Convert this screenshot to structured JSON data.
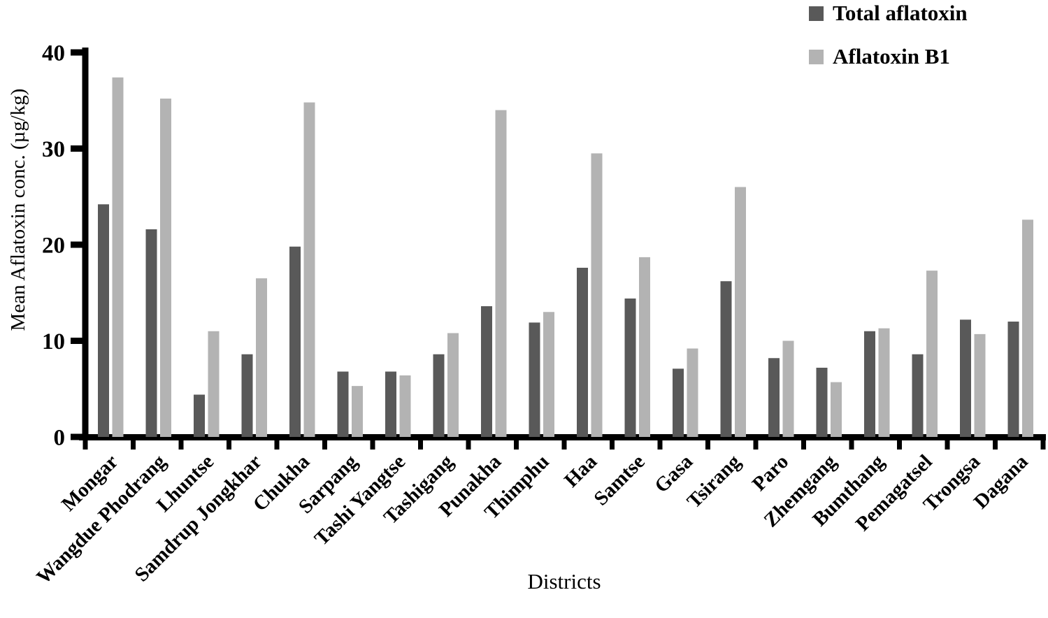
{
  "chart_data": {
    "type": "bar",
    "title": "",
    "xlabel": "Districts",
    "ylabel": "Mean Aflatoxin conc. (µg/kg)",
    "ylim": [
      0,
      40
    ],
    "yticks": [
      0,
      10,
      20,
      30,
      40
    ],
    "grid": false,
    "legend_position": "top-right",
    "categories": [
      "Mongar",
      "Wangdue Phodrang",
      "Lhuntse",
      "Samdrup Jongkhar",
      "Chukha",
      "Sarpang",
      "Tashi Yangtse",
      "Tashigang",
      "Punakha",
      "Thimphu",
      "Haa",
      "Samtse",
      "Gasa",
      "Tsirang",
      "Paro",
      "Zhemgang",
      "Bumthang",
      "Pemagatsel",
      "Trongsa",
      "Dagana"
    ],
    "series": [
      {
        "name": "Total aflatoxin",
        "color": "#595959",
        "values": [
          24.2,
          21.6,
          4.4,
          8.6,
          19.8,
          6.8,
          6.8,
          8.6,
          13.6,
          11.9,
          17.6,
          14.4,
          7.1,
          16.2,
          8.2,
          7.2,
          11.0,
          8.6,
          12.2,
          12.0
        ]
      },
      {
        "name": "Aflatoxin B1",
        "color": "#b3b3b3",
        "values": [
          37.4,
          35.2,
          11.0,
          16.5,
          34.8,
          5.3,
          6.4,
          10.8,
          34.0,
          13.0,
          29.5,
          18.7,
          9.2,
          26.0,
          10.0,
          5.7,
          11.3,
          17.3,
          10.7,
          22.6
        ]
      }
    ],
    "axis_color": "#000000",
    "background_color": "#ffffff"
  }
}
